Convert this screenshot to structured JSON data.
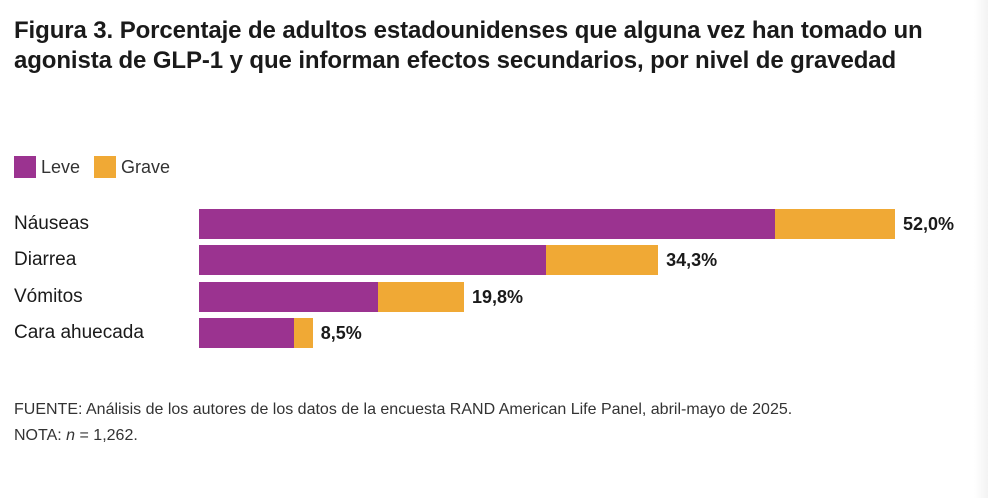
{
  "figure": {
    "label": "Figura 3.",
    "title": "Porcentaje de adultos estadounidenses que alguna vez han tomado un agonista de GLP-1 y que informan efectos secundarios, por nivel de gravedad"
  },
  "colors": {
    "leve": "#9b3390",
    "grave": "#f0a935"
  },
  "legend": [
    {
      "label": "Leve",
      "color": "#9b3390"
    },
    {
      "label": "Grave",
      "color": "#f0a935"
    }
  ],
  "chart_data": {
    "type": "bar",
    "orientation": "horizontal",
    "stacked": true,
    "categories": [
      "Náuseas",
      "Diarrea",
      "Vómitos",
      "Cara ahuecada"
    ],
    "series": [
      {
        "name": "Leve",
        "values": [
          43.0,
          25.9,
          13.4,
          7.1
        ]
      },
      {
        "name": "Grave",
        "values": [
          9.0,
          8.4,
          6.4,
          1.4
        ]
      }
    ],
    "totals": [
      52.0,
      34.3,
      19.8,
      8.5
    ],
    "total_labels": [
      "52,0%",
      "34,3%",
      "19,8%",
      "8,5%"
    ],
    "xlim": [
      0,
      52.0
    ],
    "grid": false,
    "legend_position": "top-left"
  },
  "footer": {
    "source": "FUENTE: Análisis de los autores de los datos de la encuesta RAND American Life Panel, abril-mayo de 2025.",
    "note_prefix": "NOTA: ",
    "note_n": "n",
    "note_rest": " = 1,262."
  }
}
